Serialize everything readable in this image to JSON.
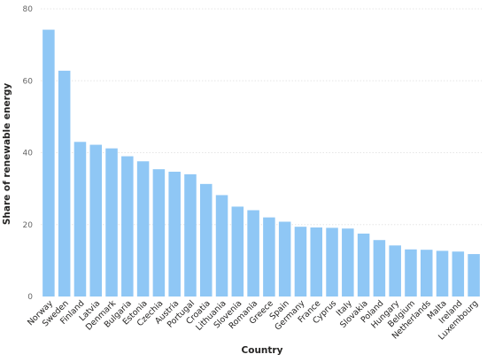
{
  "chart_data": {
    "type": "bar",
    "xlabel": "Country",
    "ylabel": "Share of renewable energy",
    "ylim": [
      0,
      80
    ],
    "yticks": [
      0,
      20,
      40,
      60,
      80
    ],
    "grid": true,
    "bar_color": "#8fc7f5",
    "categories": [
      "Norway",
      "Sweden",
      "Finland",
      "Latvia",
      "Denmark",
      "Bulgaria",
      "Estonia",
      "Czechia",
      "Austria",
      "Portugal",
      "Croatia",
      "Lithuania",
      "Slovenia",
      "Romania",
      "Greece",
      "Spain",
      "Germany",
      "France",
      "Cyprus",
      "Italy",
      "Slovakia",
      "Poland",
      "Hungary",
      "Belgium",
      "Netherlands",
      "Malta",
      "Ireland",
      "Luxembourg"
    ],
    "values": [
      74.2,
      62.8,
      43.0,
      42.2,
      41.2,
      39.0,
      37.6,
      35.4,
      34.7,
      34.0,
      31.3,
      28.2,
      25.0,
      24.0,
      22.0,
      20.8,
      19.4,
      19.2,
      19.1,
      18.9,
      17.5,
      15.7,
      14.2,
      13.1,
      13.0,
      12.7,
      12.5,
      11.8
    ]
  }
}
